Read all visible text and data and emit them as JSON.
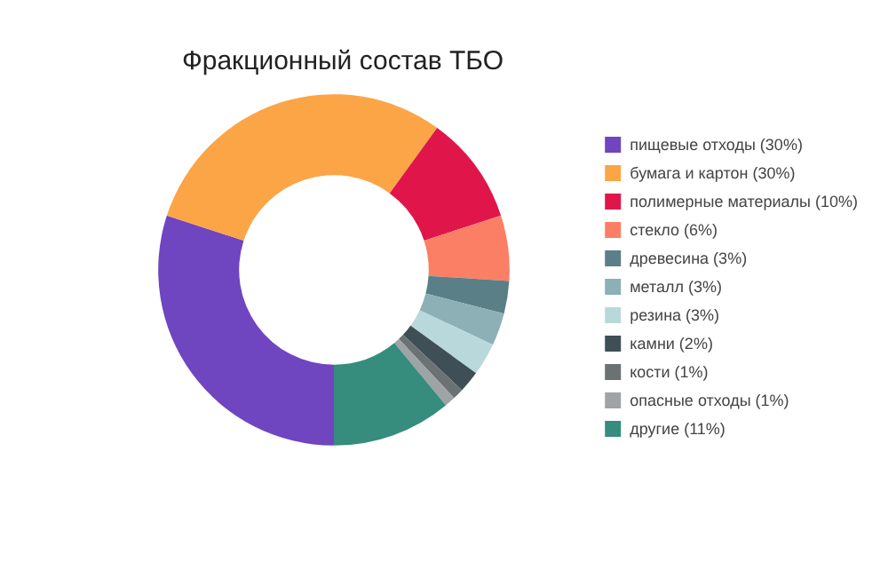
{
  "chart_data": {
    "type": "donut",
    "title": "Фракционный состав ТБО",
    "categories": [
      "пищевые отходы (30%)",
      "бумага и картон (30%)",
      "полимерные материалы (10%)",
      "стекло (6%)",
      "древесина (3%)",
      "металл (3%)",
      "резина (3%)",
      "камни (2%)",
      "кости (1%)",
      "опасные отходы (1%)",
      "другие (11%)"
    ],
    "values": [
      30,
      30,
      10,
      6,
      3,
      3,
      3,
      2,
      1,
      1,
      11
    ],
    "colors": [
      "#6f45c0",
      "#fba546",
      "#e0164b",
      "#fa7f65",
      "#5a7f86",
      "#8cb0b5",
      "#b9d8dc",
      "#3e4f56",
      "#6a7274",
      "#9ea3a5",
      "#368c7d"
    ],
    "legend": "right"
  }
}
